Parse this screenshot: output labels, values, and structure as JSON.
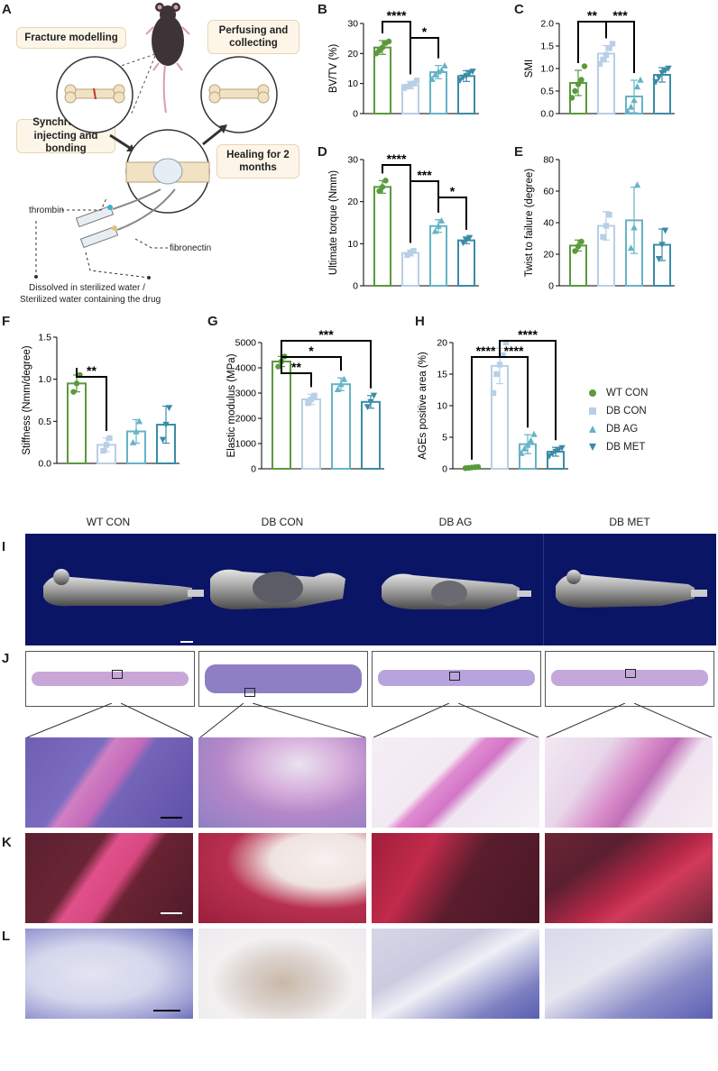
{
  "panel_letters": [
    "A",
    "B",
    "C",
    "D",
    "E",
    "F",
    "G",
    "H",
    "I",
    "J",
    "K",
    "L"
  ],
  "schematic": {
    "fracture_modelling": "Fracture modelling",
    "perfusing": "Perfusing and collecting",
    "synchronous": "Synchronous injecting and bonding",
    "healing": "Healing for 2 months",
    "thrombin": "thrombin",
    "fibronectin": "fibronectin",
    "dissolved_1": "Dissolved in sterilized water /",
    "dissolved_2": "Sterilized water containing the drug"
  },
  "legend": [
    {
      "label": "WT CON",
      "color": "#5a9a3c",
      "marker": "circle"
    },
    {
      "label": "DB CON",
      "color": "#b8cfe6",
      "marker": "square"
    },
    {
      "label": "DB AG",
      "color": "#66b3c6",
      "marker": "triangle-up"
    },
    {
      "label": "DB MET",
      "color": "#3a8ca6",
      "marker": "triangle-down"
    }
  ],
  "group_colors": [
    "#5a9a3c",
    "#b8cfe6",
    "#66b3c6",
    "#3a8ca6"
  ],
  "column_headers": [
    "WT CON",
    "DB CON",
    "DB AG",
    "DB MET"
  ],
  "chart_data": [
    {
      "id": "B",
      "type": "bar",
      "ylabel": "BV/TV (%)",
      "ylim": [
        0,
        30
      ],
      "ticks": [
        0,
        10,
        20,
        30
      ],
      "values": [
        22,
        9.5,
        13.8,
        12.5
      ],
      "err": [
        2.3,
        1.2,
        2.2,
        1.8
      ],
      "points": [
        [
          20,
          21,
          22,
          23.5,
          24
        ],
        [
          8.5,
          9,
          9.5,
          10,
          11
        ],
        [
          11.5,
          13,
          14,
          14.5,
          16
        ],
        [
          11,
          12,
          12.5,
          13.5,
          14
        ]
      ],
      "sig": [
        {
          "a": 0,
          "b": 1,
          "label": "****",
          "level": 1
        },
        {
          "a": 1,
          "b": 2,
          "label": "*",
          "level": 0
        }
      ]
    },
    {
      "id": "C",
      "type": "bar",
      "ylabel": "SMI",
      "ylim": [
        0,
        2.0
      ],
      "ticks": [
        0,
        0.5,
        1.0,
        1.5,
        2.0
      ],
      "tick_labels": [
        "0.0",
        "0.5",
        "1.0",
        "1.5",
        "2.0"
      ],
      "values": [
        0.68,
        1.33,
        0.38,
        0.86
      ],
      "err": [
        0.28,
        0.18,
        0.36,
        0.16
      ],
      "points": [
        [
          0.35,
          0.5,
          0.65,
          0.75,
          1.05
        ],
        [
          1.1,
          1.2,
          1.3,
          1.45,
          1.55
        ],
        [
          0.05,
          0.15,
          0.3,
          0.6,
          0.75
        ],
        [
          0.7,
          0.8,
          0.9,
          0.95,
          1.0
        ]
      ],
      "sig": [
        {
          "a": 0,
          "b": 1,
          "label": "**",
          "level": 0
        },
        {
          "a": 1,
          "b": 2,
          "label": "***",
          "level": 0
        }
      ]
    },
    {
      "id": "D",
      "type": "bar",
      "ylabel": "Ultimate torque (Nmm)",
      "ylim": [
        0,
        30
      ],
      "ticks": [
        0,
        10,
        20,
        30
      ],
      "values": [
        23.5,
        7.8,
        14.2,
        10.8
      ],
      "err": [
        1.5,
        0.7,
        1.5,
        0.8
      ],
      "points": [
        [
          22.5,
          23.5,
          25
        ],
        [
          7.3,
          7.8,
          8.3
        ],
        [
          13,
          14.2,
          15.5
        ],
        [
          10.2,
          10.8,
          11.4
        ]
      ],
      "sig": [
        {
          "a": 0,
          "b": 1,
          "label": "****",
          "level": 2
        },
        {
          "a": 1,
          "b": 2,
          "label": "***",
          "level": 1
        },
        {
          "a": 2,
          "b": 3,
          "label": "*",
          "level": 0
        }
      ]
    },
    {
      "id": "E",
      "type": "bar",
      "ylabel": "Twist to failure (degree)",
      "ylim": [
        0,
        80
      ],
      "ticks": [
        0,
        20,
        40,
        60,
        80
      ],
      "values": [
        25.5,
        38,
        41.5,
        26
      ],
      "err": [
        3.5,
        9,
        21,
        10
      ],
      "points": [
        [
          22,
          25,
          28
        ],
        [
          31,
          38,
          45
        ],
        [
          24,
          37,
          64
        ],
        [
          17,
          26,
          35
        ]
      ],
      "sig": []
    },
    {
      "id": "F",
      "type": "bar",
      "ylabel": "Stiffness (Nmm/degree)",
      "ylim": [
        0,
        1.5
      ],
      "ticks": [
        0,
        0.5,
        1.0,
        1.5
      ],
      "tick_labels": [
        "0.0",
        "0.5",
        "1.0",
        "1.5"
      ],
      "values": [
        0.95,
        0.22,
        0.38,
        0.46
      ],
      "err": [
        0.1,
        0.08,
        0.14,
        0.22
      ],
      "points": [
        [
          0.85,
          0.95,
          1.05
        ],
        [
          0.15,
          0.22,
          0.3
        ],
        [
          0.25,
          0.38,
          0.5
        ],
        [
          0.28,
          0.46,
          0.66
        ]
      ],
      "sig": [
        {
          "a": 0,
          "b": 1,
          "label": "**",
          "level": 0
        }
      ]
    },
    {
      "id": "G",
      "type": "bar",
      "ylabel": "Elastic modulus (MPa)",
      "ylim": [
        0,
        5000
      ],
      "ticks": [
        0,
        1000,
        2000,
        3000,
        4000,
        5000
      ],
      "values": [
        4250,
        2750,
        3350,
        2650
      ],
      "err": [
        200,
        200,
        250,
        250
      ],
      "points": [
        [
          4050,
          4250,
          4450
        ],
        [
          2600,
          2750,
          2900
        ],
        [
          3150,
          3350,
          3550
        ],
        [
          2450,
          2650,
          2900
        ]
      ],
      "sig": [
        {
          "a": 0,
          "b": 1,
          "label": "**",
          "level": 0
        },
        {
          "a": 0,
          "b": 2,
          "label": "*",
          "level": 1
        },
        {
          "a": 0,
          "b": 3,
          "label": "***",
          "level": 2
        }
      ]
    },
    {
      "id": "H",
      "type": "bar",
      "ylabel": "AGEs positive area  (%)",
      "ylim": [
        0,
        20
      ],
      "ticks": [
        0,
        5,
        10,
        15,
        20
      ],
      "values": [
        0.2,
        16.3,
        3.9,
        2.7
      ],
      "err": [
        0.1,
        2.8,
        1.5,
        0.7
      ],
      "points": [
        [
          0.1,
          0.15,
          0.2,
          0.25,
          0.3
        ],
        [
          12,
          15,
          16.5,
          18,
          20
        ],
        [
          2.5,
          3.2,
          3.8,
          4.5,
          5.5
        ],
        [
          2,
          2.4,
          2.7,
          3,
          3.3
        ]
      ],
      "sig": [
        {
          "a": 0,
          "b": 1,
          "label": "****",
          "level": 0
        },
        {
          "a": 1,
          "b": 2,
          "label": "****",
          "level": 0
        },
        {
          "a": 1,
          "b": 3,
          "label": "****",
          "level": 1
        }
      ]
    }
  ]
}
